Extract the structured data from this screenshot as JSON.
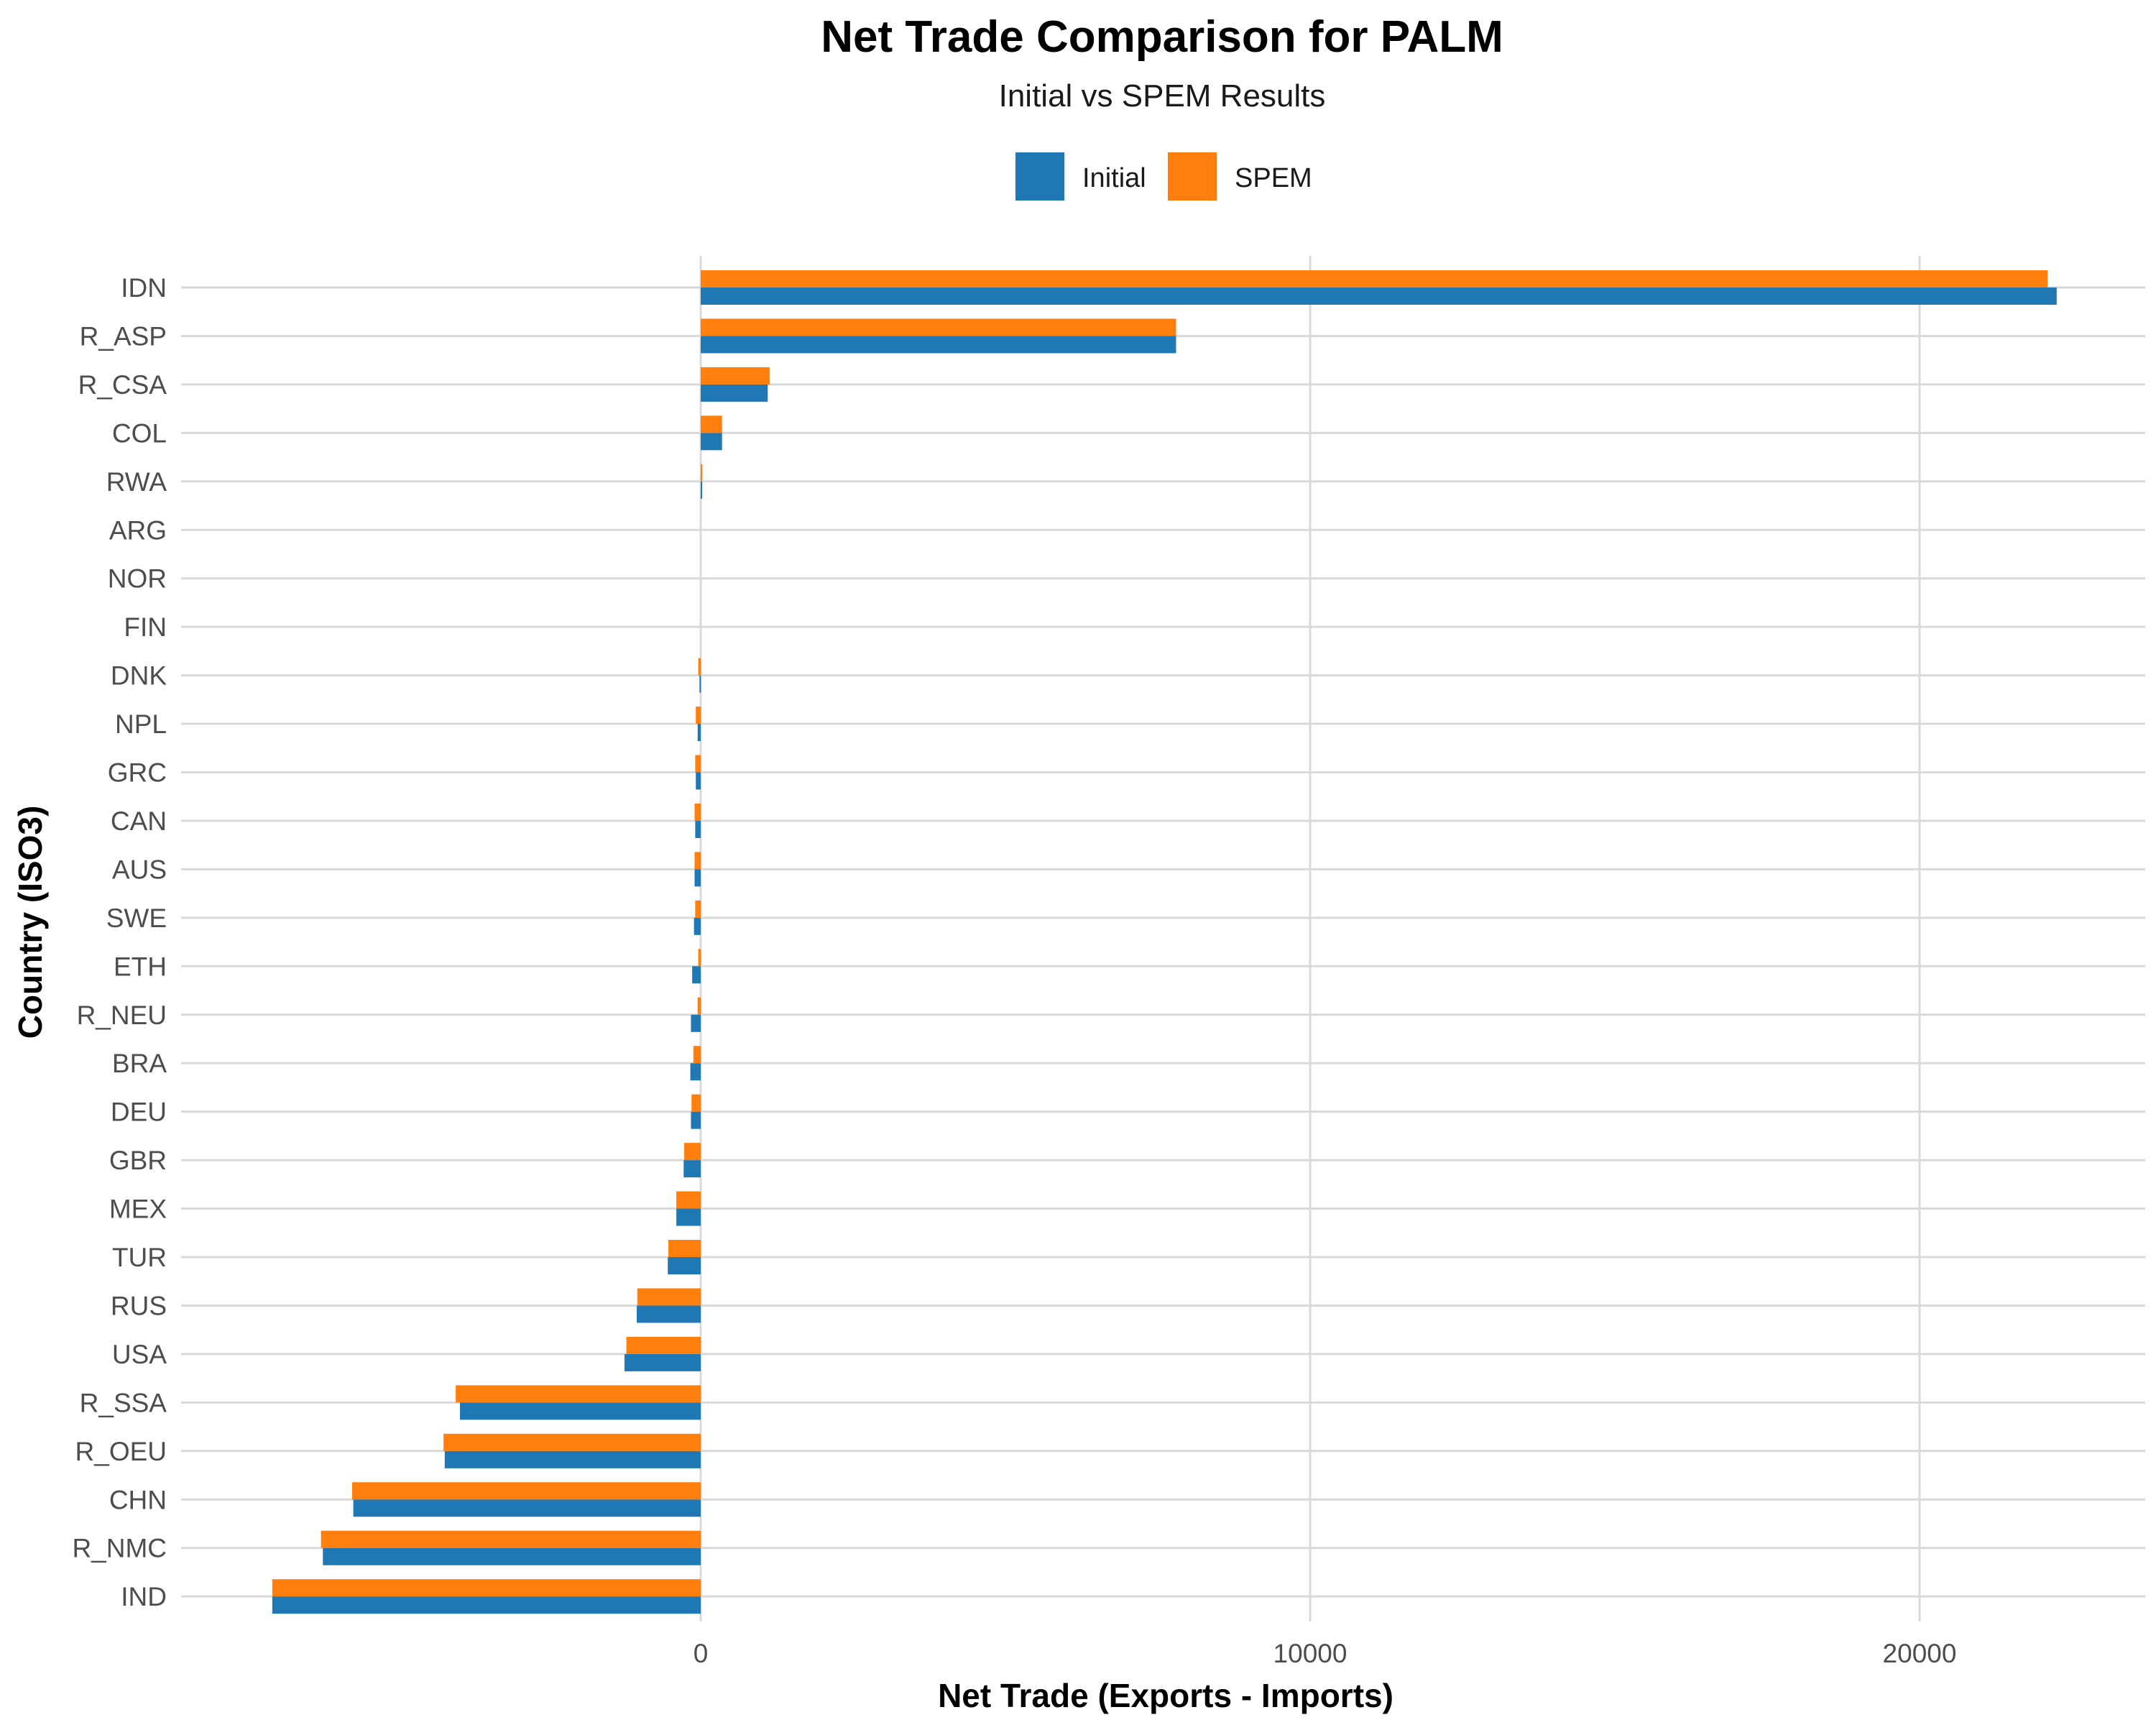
{
  "chart_data": {
    "type": "bar",
    "orientation": "horizontal",
    "title": "Net Trade Comparison for PALM",
    "subtitle": "Initial vs SPEM Results",
    "xlabel": "Net Trade (Exports - Imports)",
    "ylabel": "Country (ISO3)",
    "xlim": [
      -8500,
      23500
    ],
    "xticks": [
      0,
      10000,
      20000
    ],
    "xtick_labels": [
      "0",
      "10000",
      "20000"
    ],
    "grid": true,
    "legend_position": "top",
    "categories": [
      "IDN",
      "R_ASP",
      "R_CSA",
      "COL",
      "RWA",
      "ARG",
      "NOR",
      "FIN",
      "DNK",
      "NPL",
      "GRC",
      "CAN",
      "AUS",
      "SWE",
      "ETH",
      "R_NEU",
      "BRA",
      "DEU",
      "GBR",
      "MEX",
      "TUR",
      "RUS",
      "USA",
      "R_SSA",
      "R_OEU",
      "CHN",
      "R_NMC",
      "IND"
    ],
    "series": [
      {
        "name": "Initial",
        "color": "#1f77b4",
        "values": [
          22250,
          7800,
          1100,
          350,
          15,
          0,
          0,
          0,
          -20,
          -50,
          -80,
          -90,
          -100,
          -110,
          -140,
          -160,
          -170,
          -160,
          -280,
          -400,
          -540,
          -1050,
          -1250,
          -3950,
          -4200,
          -5700,
          -6200,
          -7030
        ]
      },
      {
        "name": "SPEM",
        "color": "#ff7f0e",
        "values": [
          22100,
          7800,
          1130,
          350,
          25,
          0,
          0,
          0,
          -40,
          -80,
          -90,
          -100,
          -100,
          -90,
          -40,
          -50,
          -120,
          -150,
          -270,
          -400,
          -530,
          -1040,
          -1220,
          -4020,
          -4220,
          -5720,
          -6230,
          -7030
        ]
      }
    ]
  }
}
